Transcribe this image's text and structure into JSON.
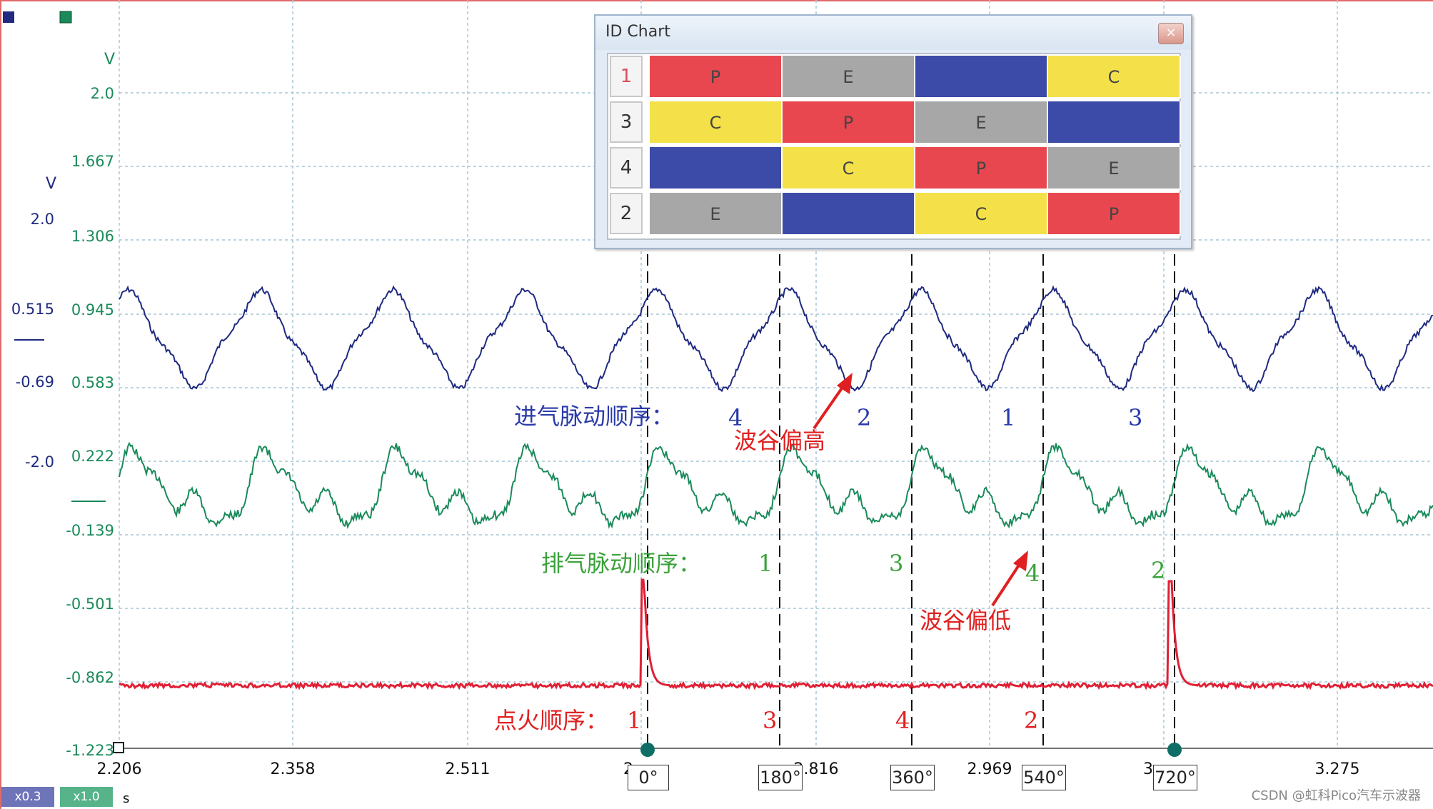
{
  "id_chart": {
    "title": "ID Chart",
    "close_label": "×",
    "rows": [
      {
        "label": "1",
        "label_color": "#d94f5c",
        "cells": [
          {
            "text": "P",
            "fill": "#e8474f"
          },
          {
            "text": "E",
            "fill": "#a7a7a7"
          },
          {
            "text": "",
            "fill": "#3c4aa8"
          },
          {
            "text": "C",
            "fill": "#f4e14a"
          }
        ]
      },
      {
        "label": "3",
        "label_color": "#333333",
        "cells": [
          {
            "text": "C",
            "fill": "#f4e14a"
          },
          {
            "text": "P",
            "fill": "#e8474f"
          },
          {
            "text": "E",
            "fill": "#a7a7a7"
          },
          {
            "text": "",
            "fill": "#3c4aa8"
          }
        ]
      },
      {
        "label": "4",
        "label_color": "#333333",
        "cells": [
          {
            "text": "",
            "fill": "#3c4aa8"
          },
          {
            "text": "C",
            "fill": "#f4e14a"
          },
          {
            "text": "P",
            "fill": "#e8474f"
          },
          {
            "text": "E",
            "fill": "#a7a7a7"
          }
        ]
      },
      {
        "label": "2",
        "label_color": "#333333",
        "cells": [
          {
            "text": "E",
            "fill": "#a7a7a7"
          },
          {
            "text": "",
            "fill": "#3c4aa8"
          },
          {
            "text": "C",
            "fill": "#f4e14a"
          },
          {
            "text": "P",
            "fill": "#e8474f"
          }
        ]
      }
    ]
  },
  "axes": {
    "green_unit": "V",
    "green_ticks": [
      "2.0",
      "1.667",
      "1.306",
      "0.945",
      "0.583",
      "0.222",
      "-0.139",
      "-0.501",
      "-0.862",
      "-1.223"
    ],
    "blue_unit": "V",
    "blue_ticks": [
      "2.0",
      "0.515",
      "-0.69",
      "-2.0"
    ],
    "x_ticks": [
      "2.206",
      "2.358",
      "2.511",
      "2",
      "2.816",
      "2.969",
      "3",
      "3.275"
    ],
    "x_unit": "s",
    "zoom_x": "x0.3",
    "zoom_y": "x1.0"
  },
  "angle_markers": [
    "0°",
    "180°",
    "360°",
    "540°",
    "720°"
  ],
  "annotations": {
    "intake_title": "进气脉动顺序：",
    "intake_order": [
      "4",
      "2",
      "1",
      "3"
    ],
    "intake_note": "波谷偏高",
    "exhaust_title": "排气脉动顺序：",
    "exhaust_order": [
      "1",
      "3",
      "4",
      "2"
    ],
    "exhaust_note": "波谷偏低",
    "ignition_title": "点火顺序：",
    "ignition_order": [
      "1",
      "3",
      "4",
      "2"
    ]
  },
  "watermark": "CSDN @虹科Pico汽车示波器",
  "colors": {
    "intake": "#1f2a80",
    "exhaust": "#1a8a5a",
    "ignition": "#e02035",
    "grid": "#a9c6d6",
    "green_axis": "#1a8a5a",
    "blue_axis": "#1f2a80",
    "annotation_red": "#e02020",
    "annotation_blue": "#2a3aa8",
    "annotation_green": "#3ba23b"
  }
}
